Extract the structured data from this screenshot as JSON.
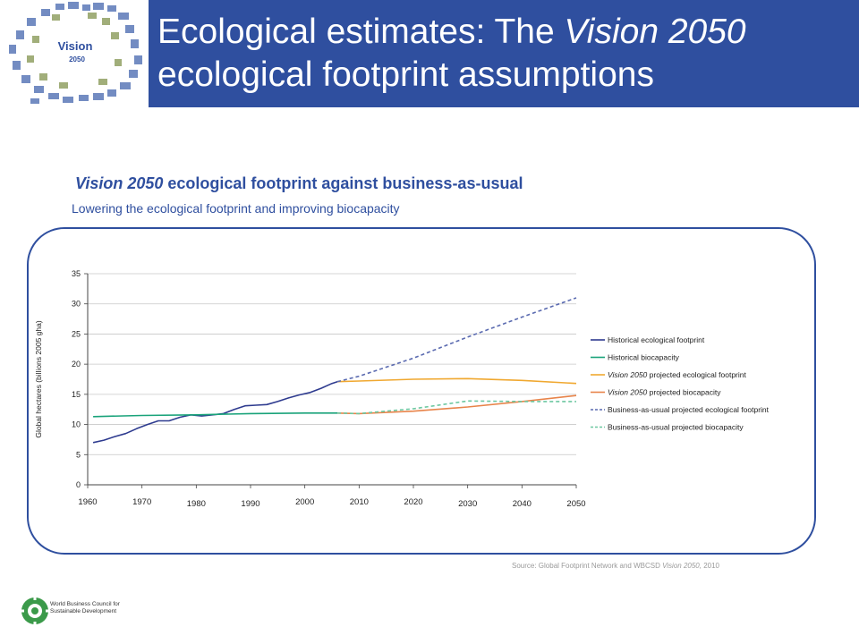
{
  "slide": {
    "title_part1": "Ecological estimates: The ",
    "title_italic": "Vision 2050",
    "title_part2": " ecological footprint assumptions",
    "logo_text_1": "Vision",
    "logo_text_2": "2050"
  },
  "chart_heading": {
    "italic": "Vision 2050",
    "rest": " ecological footprint against business-as-usual",
    "subtitle": "Lowering the ecological footprint and improving biocapacity"
  },
  "source": {
    "prefix": "Source: Global Footprint Network and WBCSD ",
    "italic": "Vision 2050,",
    "suffix": " 2010"
  },
  "footer": {
    "org_line1": "World Business Council for",
    "org_line2": "Sustainable Development"
  },
  "colors": {
    "brand_blue": "#2f4f9f",
    "historical_footprint": "#2e3b8f",
    "historical_biocapacity": "#1aa37a",
    "vision_footprint": "#f0a830",
    "vision_biocapacity": "#e8844a",
    "bau_footprint": "#5a6ab0",
    "bau_biocapacity": "#6cc7a0"
  },
  "chart_data": {
    "type": "line",
    "ylabel": "Global hectares (billions 2005 gha)",
    "xlabel": "",
    "xlim": [
      1960,
      2050
    ],
    "ylim": [
      0,
      35
    ],
    "x_ticks": [
      "1960",
      "1970",
      "1980",
      "1990",
      "2000",
      "2010",
      "2020",
      "2030",
      "2040",
      "2050"
    ],
    "y_ticks": [
      "0",
      "5",
      "10",
      "15",
      "20",
      "25",
      "30",
      "35"
    ],
    "grid": "horizontal",
    "legend_position": "right",
    "series": [
      {
        "name": "Historical ecological footprint",
        "legend_prefix": "",
        "legend_suffix": "Historical ecological footprint",
        "color_key": "historical_footprint",
        "dash": false,
        "x": [
          1961,
          1963,
          1965,
          1967,
          1969,
          1971,
          1973,
          1975,
          1977,
          1979,
          1981,
          1983,
          1985,
          1987,
          1989,
          1991,
          1993,
          1995,
          1997,
          1999,
          2001,
          2003,
          2005,
          2006
        ],
        "y": [
          7.0,
          7.4,
          8.0,
          8.5,
          9.3,
          10.0,
          10.6,
          10.6,
          11.2,
          11.6,
          11.4,
          11.6,
          11.8,
          12.5,
          13.1,
          13.2,
          13.3,
          13.8,
          14.4,
          14.9,
          15.3,
          16.0,
          16.8,
          17.1
        ]
      },
      {
        "name": "Historical biocapacity",
        "legend_prefix": "",
        "legend_suffix": "Historical biocapacity",
        "color_key": "historical_biocapacity",
        "dash": false,
        "x": [
          1961,
          1970,
          1980,
          1990,
          2000,
          2006
        ],
        "y": [
          11.3,
          11.5,
          11.6,
          11.8,
          11.9,
          11.9
        ]
      },
      {
        "name": "Vision 2050 projected ecological footprint",
        "legend_prefix": "Vision 2050",
        "legend_suffix": " projected ecological footprint",
        "color_key": "vision_footprint",
        "dash": false,
        "x": [
          2006,
          2010,
          2020,
          2030,
          2040,
          2050
        ],
        "y": [
          17.1,
          17.2,
          17.5,
          17.6,
          17.3,
          16.8
        ]
      },
      {
        "name": "Vision 2050 projected biocapacity",
        "legend_prefix": "Vision 2050",
        "legend_suffix": " projected biocapacity",
        "color_key": "vision_biocapacity",
        "dash": false,
        "x": [
          2006,
          2010,
          2020,
          2030,
          2040,
          2050
        ],
        "y": [
          11.9,
          11.8,
          12.2,
          12.9,
          13.8,
          14.8
        ]
      },
      {
        "name": "Business-as-usual projected ecological footprint",
        "legend_prefix": "",
        "legend_suffix": "Business-as-usual projected ecological footprint",
        "color_key": "bau_footprint",
        "dash": true,
        "x": [
          2006,
          2010,
          2020,
          2030,
          2040,
          2050
        ],
        "y": [
          17.1,
          18.0,
          21.0,
          24.5,
          27.8,
          31.0
        ]
      },
      {
        "name": "Business-as-usual projected biocapacity",
        "legend_prefix": "",
        "legend_suffix": "Business-as-usual projected biocapacity",
        "color_key": "bau_biocapacity",
        "dash": true,
        "x": [
          2006,
          2010,
          2020,
          2030,
          2040,
          2050
        ],
        "y": [
          11.9,
          11.8,
          12.6,
          13.9,
          13.8,
          13.8
        ]
      }
    ]
  }
}
